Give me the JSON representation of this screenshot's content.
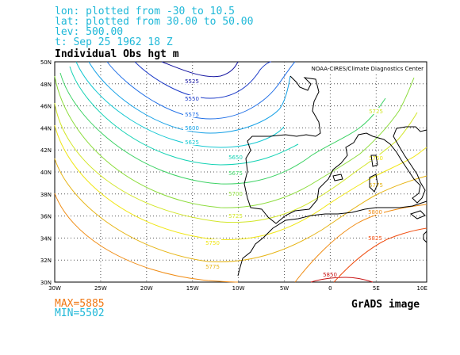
{
  "header": {
    "lon": "lon: plotted from -30 to 10.5",
    "lat": "lat: plotted from 30.00 to 50.00",
    "lev": "lev: 500.00",
    "time": "t: Sep 25 1962 18 Z"
  },
  "title": "Individual Obs hgt m",
  "credit": "NOAA-CIRES/Climate Diagnostics Center",
  "map": {
    "lon_range": [
      -30,
      10.5
    ],
    "lat_range": [
      30,
      50
    ],
    "x_ticks": [
      "30W",
      "25W",
      "20W",
      "15W",
      "10W",
      "5W",
      "0",
      "5E",
      "10E"
    ],
    "y_ticks": [
      "30N",
      "32N",
      "34N",
      "36N",
      "38N",
      "40N",
      "42N",
      "44N",
      "46N",
      "48N",
      "50N"
    ],
    "contour_interval": 25,
    "contours": [
      {
        "value": "5525",
        "color": "#1414a0"
      },
      {
        "value": "5550",
        "color": "#1e3cc8"
      },
      {
        "value": "5575",
        "color": "#1e6ee6"
      },
      {
        "value": "5600",
        "color": "#14a0e6"
      },
      {
        "value": "5625",
        "color": "#14c8d2"
      },
      {
        "value": "5650",
        "color": "#14d2b4"
      },
      {
        "value": "5675",
        "color": "#3cd264"
      },
      {
        "value": "5700",
        "color": "#8cdc3c"
      },
      {
        "value": "5725",
        "color": "#d2e628"
      },
      {
        "value": "5750",
        "color": "#f0e614"
      },
      {
        "value": "5775",
        "color": "#e6b414"
      },
      {
        "value": "5800",
        "color": "#f08c14"
      },
      {
        "value": "5825",
        "color": "#f05014"
      },
      {
        "value": "5850",
        "color": "#c81414"
      }
    ]
  },
  "stats": {
    "max": "MAX=5885",
    "min": "MIN=5502",
    "max_color": "#f07814",
    "min_color": "#1fb8d8"
  },
  "footer": "GrADS image"
}
